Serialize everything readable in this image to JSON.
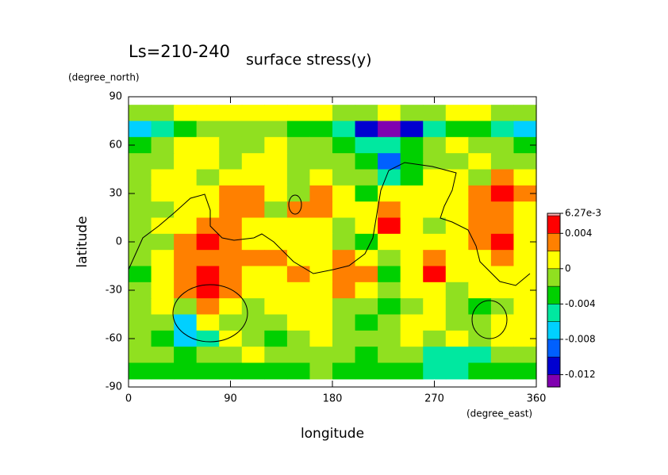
{
  "chart_data": {
    "type": "contour",
    "title": "surface stress(y)",
    "subtitle": "Ls=210-240",
    "x_label": "longitude",
    "x_unit": "(degree_east)",
    "y_label": "latitude",
    "y_unit": "(degree_north)",
    "xlim": [
      0,
      360
    ],
    "ylim": [
      -90,
      90
    ],
    "xticks": [
      0,
      90,
      180,
      270,
      360
    ],
    "yticks": [
      90,
      60,
      30,
      0,
      -30,
      -60,
      -90
    ],
    "lon": [
      10,
      30,
      50,
      70,
      90,
      110,
      130,
      150,
      170,
      190,
      210,
      230,
      250,
      270,
      290,
      310,
      330,
      350
    ],
    "lat": [
      80,
      70,
      60,
      50,
      40,
      30,
      20,
      10,
      0,
      -10,
      -20,
      -30,
      -40,
      -50,
      -60,
      -70,
      -80
    ],
    "z": [
      [
        -0.001,
        -0.001,
        0.001,
        0.001,
        0.001,
        0.001,
        0.001,
        0.001,
        0.001,
        -0.001,
        -0.001,
        0.001,
        -0.001,
        -0.001,
        0.001,
        0.001,
        -0.001,
        -0.001
      ],
      [
        -0.007,
        -0.005,
        -0.003,
        -0.001,
        -0.001,
        -0.001,
        -0.001,
        -0.003,
        -0.003,
        -0.005,
        -0.011,
        -0.013,
        -0.011,
        -0.005,
        -0.003,
        -0.003,
        -0.005,
        -0.007
      ],
      [
        -0.003,
        -0.001,
        0.001,
        0.001,
        -0.001,
        -0.001,
        0.001,
        -0.001,
        -0.001,
        -0.003,
        -0.005,
        -0.005,
        -0.003,
        -0.001,
        0.001,
        -0.001,
        -0.001,
        -0.003
      ],
      [
        -0.001,
        -0.001,
        0.001,
        0.001,
        -0.001,
        0.001,
        0.001,
        -0.001,
        -0.001,
        -0.001,
        -0.003,
        -0.009,
        -0.003,
        -0.001,
        -0.001,
        0.001,
        -0.001,
        -0.001
      ],
      [
        -0.001,
        0.001,
        0.001,
        -0.001,
        0.001,
        0.001,
        0.001,
        -0.001,
        0.001,
        -0.001,
        -0.001,
        -0.005,
        -0.003,
        0.001,
        0.001,
        -0.001,
        0.003,
        0.001
      ],
      [
        -0.001,
        0.001,
        0.001,
        0.001,
        0.003,
        0.003,
        0.001,
        -0.001,
        0.003,
        0.001,
        -0.003,
        0.001,
        0.001,
        0.001,
        0.001,
        0.003,
        0.005,
        0.003
      ],
      [
        -0.001,
        -0.001,
        0.001,
        0.001,
        0.003,
        0.003,
        -0.001,
        0.003,
        0.003,
        0.001,
        0.001,
        0.003,
        0.001,
        0.001,
        0.001,
        0.003,
        0.003,
        0.001
      ],
      [
        -0.001,
        0.001,
        0.001,
        0.003,
        0.003,
        0.001,
        0.001,
        0.001,
        0.001,
        -0.001,
        0.001,
        0.005,
        0.001,
        -0.001,
        0.001,
        0.003,
        0.003,
        0.001
      ],
      [
        -0.001,
        -0.001,
        0.003,
        0.005,
        0.003,
        0.001,
        0.001,
        0.001,
        0.001,
        -0.001,
        -0.003,
        0.001,
        0.001,
        0.001,
        0.001,
        0.003,
        0.005,
        0.001
      ],
      [
        -0.001,
        0.001,
        0.003,
        0.003,
        0.003,
        0.003,
        0.003,
        0.001,
        0.001,
        0.003,
        0.001,
        -0.001,
        0.001,
        0.003,
        0.001,
        0.001,
        0.003,
        0.001
      ],
      [
        -0.003,
        0.001,
        0.003,
        0.005,
        0.003,
        0.001,
        0.001,
        0.003,
        0.001,
        0.003,
        0.003,
        -0.003,
        0.001,
        0.005,
        0.001,
        0.001,
        0.001,
        0.001
      ],
      [
        -0.001,
        0.001,
        0.003,
        0.005,
        0.003,
        0.001,
        0.001,
        0.001,
        0.001,
        0.003,
        0.001,
        -0.001,
        0.001,
        0.001,
        -0.001,
        0.001,
        0.001,
        0.001
      ],
      [
        -0.001,
        0.001,
        -0.001,
        0.003,
        0.001,
        -0.001,
        0.001,
        0.001,
        0.001,
        -0.001,
        -0.001,
        -0.003,
        -0.001,
        0.001,
        -0.001,
        -0.003,
        -0.001,
        0.001
      ],
      [
        -0.001,
        -0.001,
        -0.007,
        0.001,
        -0.001,
        -0.001,
        -0.001,
        0.001,
        0.001,
        -0.001,
        -0.003,
        -0.001,
        0.001,
        0.001,
        -0.001,
        -0.001,
        0.001,
        0.001
      ],
      [
        -0.001,
        -0.003,
        -0.007,
        -0.005,
        0.001,
        -0.001,
        -0.003,
        -0.001,
        0.001,
        -0.001,
        -0.001,
        -0.001,
        0.001,
        -0.001,
        0.001,
        -0.001,
        0.001,
        0.001
      ],
      [
        -0.001,
        -0.001,
        -0.003,
        -0.001,
        -0.001,
        0.001,
        -0.001,
        -0.001,
        -0.001,
        -0.001,
        -0.003,
        -0.001,
        -0.001,
        -0.005,
        -0.005,
        -0.005,
        -0.001,
        -0.001
      ],
      [
        -0.003,
        -0.003,
        -0.003,
        -0.003,
        -0.003,
        -0.003,
        -0.003,
        -0.003,
        -0.001,
        -0.003,
        -0.003,
        -0.003,
        -0.003,
        -0.005,
        -0.005,
        -0.003,
        -0.003,
        -0.003
      ]
    ],
    "levels": [
      -0.0134,
      -0.012,
      -0.01,
      -0.008,
      -0.006,
      -0.004,
      -0.002,
      0,
      0.002,
      0.004,
      0.006,
      0.00627
    ],
    "colors": [
      "#8000b0",
      "#0000d0",
      "#0060ff",
      "#00d0ff",
      "#00e8a0",
      "#00d000",
      "#90e020",
      "#ffff00",
      "#ff8000",
      "#ff0000",
      "#ffb0b0"
    ],
    "cbar_ticks": [
      {
        "value": 0.00627,
        "label": "6.27e-3"
      },
      0.004,
      0,
      -0.004,
      -0.008,
      -0.012
    ]
  }
}
